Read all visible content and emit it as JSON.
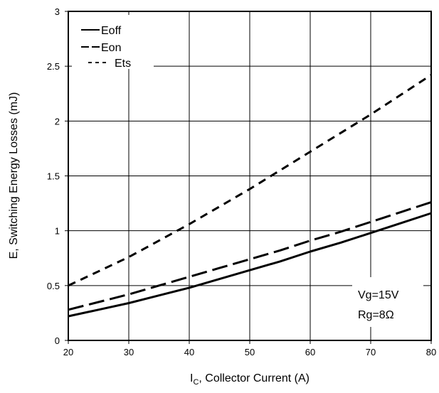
{
  "chart_data": {
    "type": "line",
    "title": "",
    "xlabel_main": "I",
    "xlabel_sub": "C",
    "xlabel_rest": ", Collector Current (A)",
    "ylabel": "E, Switching Energy Losses (mJ)",
    "xlim": [
      20,
      80
    ],
    "ylim": [
      0,
      3
    ],
    "x_ticks": [
      "20",
      "30",
      "40",
      "50",
      "60",
      "70",
      "80"
    ],
    "y_ticks": [
      "0",
      "0.5",
      "1",
      "1.5",
      "2",
      "2.5",
      "3"
    ],
    "grid": true,
    "legend_position": "top-left",
    "series": [
      {
        "name": "Eoff",
        "style": "solid",
        "x": [
          20,
          25,
          30,
          35,
          40,
          45,
          50,
          55,
          60,
          65,
          70,
          75,
          80
        ],
        "y": [
          0.22,
          0.28,
          0.34,
          0.41,
          0.48,
          0.56,
          0.64,
          0.72,
          0.81,
          0.89,
          0.98,
          1.07,
          1.16
        ]
      },
      {
        "name": "Eon",
        "style": "long-dash",
        "x": [
          20,
          25,
          30,
          35,
          40,
          45,
          50,
          55,
          60,
          65,
          70,
          75,
          80
        ],
        "y": [
          0.28,
          0.35,
          0.42,
          0.5,
          0.58,
          0.66,
          0.74,
          0.82,
          0.91,
          0.99,
          1.08,
          1.17,
          1.26
        ]
      },
      {
        "name": "Ets",
        "style": "short-dash",
        "x": [
          20,
          25,
          30,
          35,
          40,
          45,
          50,
          55,
          60,
          65,
          70,
          75,
          80
        ],
        "y": [
          0.5,
          0.63,
          0.76,
          0.91,
          1.06,
          1.22,
          1.38,
          1.55,
          1.72,
          1.89,
          2.06,
          2.24,
          2.42
        ]
      }
    ],
    "annotations": [
      "Vg=15V",
      "Rg=8Ω"
    ]
  }
}
